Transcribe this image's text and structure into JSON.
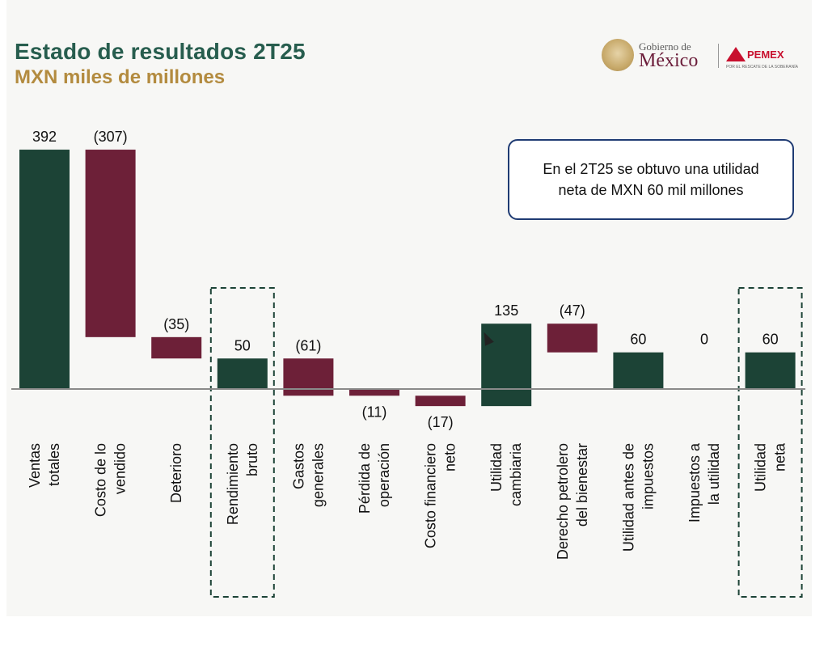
{
  "header": {
    "title": "Estado de resultados 2T25",
    "subtitle": "MXN miles de millones"
  },
  "logos": {
    "gob_small": "Gobierno de",
    "gob_main": "México",
    "pemex": "PEMEX",
    "pemex_tagline": "POR EL RESCATE DE LA SOBERANÍA"
  },
  "callout": {
    "text": "En el 2T25 se obtuvo una utilidad neta de MXN 60 mil millones"
  },
  "colors": {
    "positive": "#1c4336",
    "negative": "#6d2038",
    "axis": "#8a8a8a",
    "highlight_border": "#1c4336"
  },
  "chart_data": {
    "type": "bar",
    "subtype": "waterfall",
    "title": "Estado de resultados 2T25",
    "subtitle": "MXN miles de millones",
    "categories": [
      [
        "Ventas",
        "totales"
      ],
      [
        "Costo de lo",
        "vendido"
      ],
      [
        "Deterioro"
      ],
      [
        "Rendimiento",
        "bruto"
      ],
      [
        "Gastos",
        "generales"
      ],
      [
        "Pérdida de",
        "operación"
      ],
      [
        "Costo financiero",
        "neto"
      ],
      [
        "Utilidad",
        "cambiaria"
      ],
      [
        "Derecho petrolero",
        "del bienestar"
      ],
      [
        "Utilidad antes de",
        "impuestos"
      ],
      [
        "Impuestos a",
        "la utilidad"
      ],
      [
        "Utilidad",
        "neta"
      ]
    ],
    "data_labels": [
      "392",
      "(307)",
      "(35)",
      "50",
      "(61)",
      "(11)",
      "(17)",
      "135",
      "(47)",
      "60",
      "0",
      "60"
    ],
    "bars": [
      {
        "start": 0,
        "end": 392,
        "kind": "positive"
      },
      {
        "start": 392,
        "end": 85,
        "kind": "negative"
      },
      {
        "start": 85,
        "end": 50,
        "kind": "negative"
      },
      {
        "start": 0,
        "end": 50,
        "kind": "positive"
      },
      {
        "start": 50,
        "end": -11,
        "kind": "negative"
      },
      {
        "start": -11,
        "end": 0,
        "kind": "negative"
      },
      {
        "start": -11,
        "end": -28,
        "kind": "negative"
      },
      {
        "start": -28,
        "end": 107,
        "kind": "positive"
      },
      {
        "start": 107,
        "end": 60,
        "kind": "negative"
      },
      {
        "start": 0,
        "end": 60,
        "kind": "positive"
      },
      {
        "start": 60,
        "end": 60,
        "kind": "negative"
      },
      {
        "start": 0,
        "end": 60,
        "kind": "positive"
      }
    ],
    "highlighted": [
      3,
      11
    ],
    "ylim": [
      -28,
      392
    ],
    "grid": false,
    "legend": "none"
  }
}
